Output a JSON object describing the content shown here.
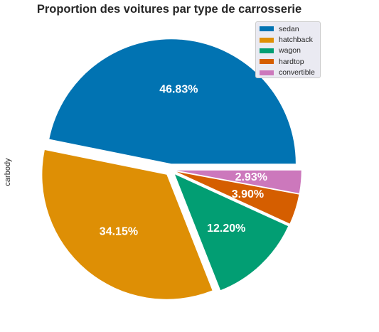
{
  "chart_data": {
    "type": "pie",
    "title": "Proportion des voitures par type de carrosserie",
    "ylabel": "carbody",
    "categories": [
      "sedan",
      "hatchback",
      "wagon",
      "hardtop",
      "convertible"
    ],
    "values": [
      46.83,
      34.15,
      12.2,
      3.9,
      2.93
    ],
    "labels": [
      "46.83%",
      "34.15%",
      "12.20%",
      "3.90%",
      "2.93%"
    ],
    "colors": [
      "#0173b2",
      "#de8f05",
      "#029e73",
      "#d55e00",
      "#cc78bc"
    ],
    "explode": [
      0.05,
      0.05,
      0.05,
      0.05,
      0.05
    ],
    "legend": "top-right",
    "label_color": "#ffffff"
  }
}
